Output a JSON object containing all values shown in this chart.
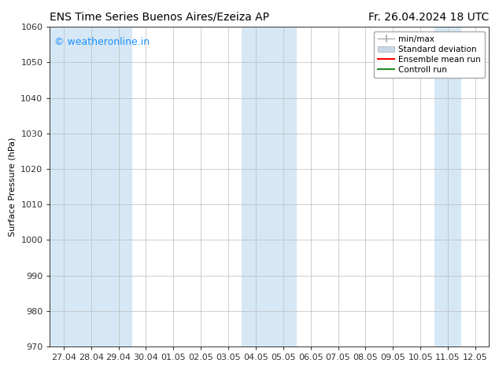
{
  "title_left": "ENS Time Series Buenos Aires/Ezeiza AP",
  "title_right": "Fr. 26.04.2024 18 UTC",
  "ylabel": "Surface Pressure (hPa)",
  "ylim": [
    970,
    1060
  ],
  "yticks": [
    970,
    980,
    990,
    1000,
    1010,
    1020,
    1030,
    1040,
    1050,
    1060
  ],
  "xlabels": [
    "27.04",
    "28.04",
    "29.04",
    "30.04",
    "01.05",
    "02.05",
    "03.05",
    "04.05",
    "05.05",
    "06.05",
    "07.05",
    "08.05",
    "09.05",
    "10.05",
    "11.05",
    "12.05"
  ],
  "shaded_indices": [
    0,
    1,
    2,
    7,
    8,
    14
  ],
  "shade_color": "#d6e8f5",
  "background_color": "#ffffff",
  "watermark": "© weatheronline.in",
  "watermark_color": "#1e90ff",
  "legend_minmax_color": "#aaaaaa",
  "legend_std_color": "#c8d8e8",
  "legend_ens_color": "#ff0000",
  "legend_ctrl_color": "#228b22",
  "title_fontsize": 10,
  "label_fontsize": 8,
  "watermark_fontsize": 9,
  "grid_color": "#bbbbbb",
  "tick_color": "#333333"
}
